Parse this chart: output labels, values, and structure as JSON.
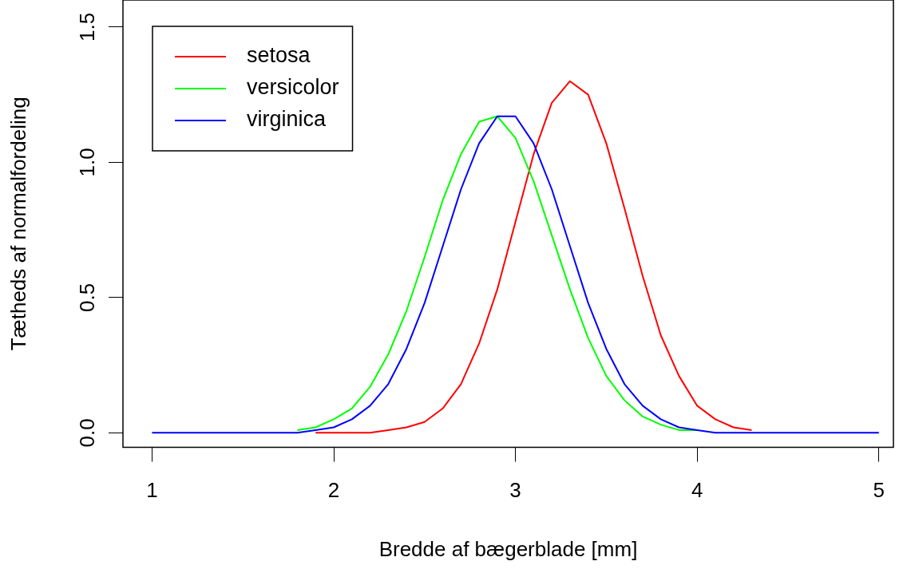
{
  "chart_data": {
    "type": "line",
    "xlabel": "Bredde af bægerblade [mm]",
    "ylabel": "Tætheds af normalfordeling",
    "x": [
      1.0,
      1.5,
      1.6,
      1.7,
      1.8,
      1.9,
      2.0,
      2.1,
      2.2,
      2.3,
      2.4,
      2.5,
      2.6,
      2.7,
      2.8,
      2.9,
      3.0,
      3.1,
      3.2,
      3.3,
      3.4,
      3.5,
      3.6,
      3.7,
      3.8,
      3.9,
      4.0,
      4.1,
      4.2,
      4.3,
      4.4,
      4.5,
      5.0
    ],
    "series": [
      {
        "name": "setosa",
        "color": "#ff0000",
        "values": [
          null,
          null,
          null,
          null,
          null,
          0,
          0,
          0,
          0,
          0.01,
          0.02,
          0.04,
          0.09,
          0.18,
          0.33,
          0.53,
          0.78,
          1.03,
          1.22,
          1.3,
          1.25,
          1.07,
          0.83,
          0.58,
          0.36,
          0.21,
          0.1,
          0.05,
          0.02,
          0.01,
          null,
          null,
          null
        ]
      },
      {
        "name": "versicolor",
        "color": "#00ff00",
        "values": [
          null,
          null,
          null,
          null,
          0.01,
          0.02,
          0.05,
          0.09,
          0.17,
          0.29,
          0.45,
          0.65,
          0.86,
          1.03,
          1.15,
          1.17,
          1.09,
          0.93,
          0.73,
          0.53,
          0.35,
          0.21,
          0.12,
          0.06,
          0.03,
          0.01,
          0.01,
          null,
          null,
          null,
          null,
          null,
          null
        ]
      },
      {
        "name": "virginica",
        "color": "#0000ff",
        "values": [
          0,
          0,
          0,
          0,
          0,
          0.01,
          0.02,
          0.05,
          0.1,
          0.18,
          0.31,
          0.48,
          0.69,
          0.9,
          1.07,
          1.17,
          1.17,
          1.07,
          0.9,
          0.69,
          0.48,
          0.31,
          0.18,
          0.1,
          0.05,
          0.02,
          0.01,
          0,
          0,
          0,
          0,
          0,
          0
        ]
      }
    ],
    "xlim": [
      0.84,
      5.08
    ],
    "ylim": [
      -0.054,
      1.6
    ],
    "xticks": [
      1,
      2,
      3,
      4,
      5
    ],
    "yticks": [
      {
        "value": 0,
        "label": "0.0"
      },
      {
        "value": 0.5,
        "label": "0.5"
      },
      {
        "value": 1,
        "label": "1.0"
      },
      {
        "value": 1.5,
        "label": "1.5"
      }
    ],
    "grid": false,
    "legend": "top left",
    "marker": "none",
    "line_style": "solid"
  }
}
